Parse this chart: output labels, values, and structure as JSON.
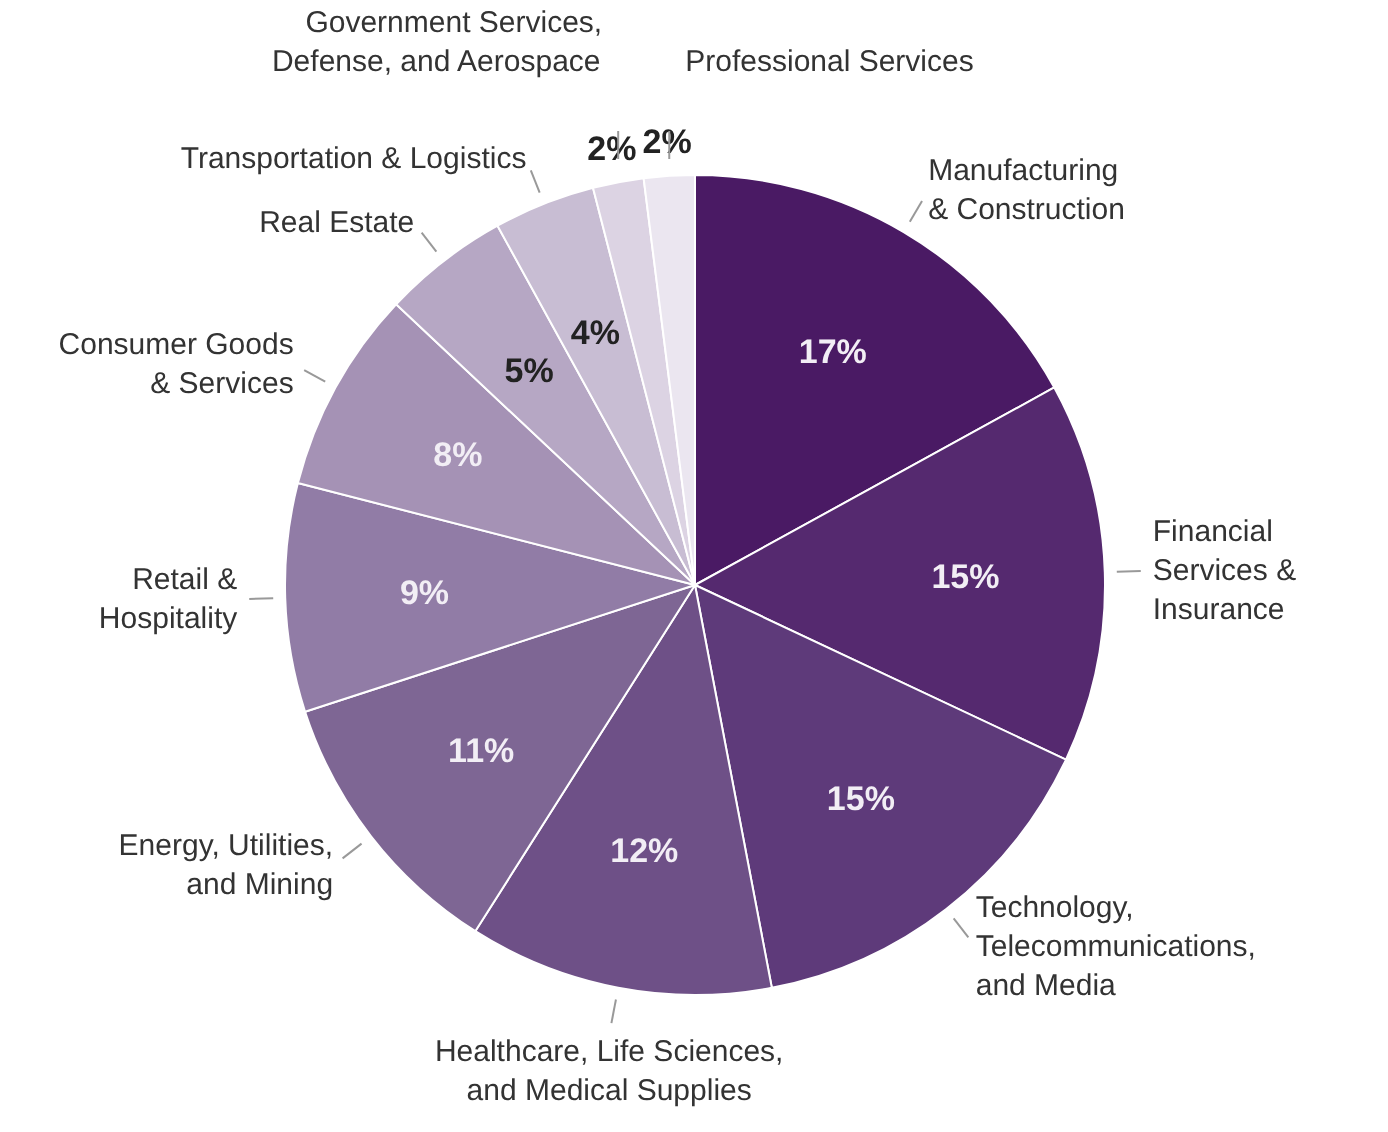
{
  "chart_data": {
    "type": "pie",
    "categories": [
      "Manufacturing\n& Construction",
      "Financial\nServices &\nInsurance",
      "Technology,\nTelecommunications,\nand Media",
      "Healthcare, Life Sciences,\nand Medical Supplies",
      "Energy, Utilities,\nand Mining",
      "Retail &\nHospitality",
      "Consumer Goods\n& Services",
      "Real Estate",
      "Transportation & Logistics",
      "Government Services,\nDefense, and Aerospace",
      "Professional Services"
    ],
    "values": [
      17,
      15,
      15,
      12,
      11,
      9,
      8,
      5,
      4,
      2,
      2
    ],
    "value_labels": [
      "17%",
      "15%",
      "15%",
      "12%",
      "11%",
      "9%",
      "8%",
      "5%",
      "4%",
      "2%",
      "2%"
    ],
    "colors": [
      "#4a1a64",
      "#55296f",
      "#5e3a7a",
      "#6e5087",
      "#7e6694",
      "#917ca6",
      "#a592b5",
      "#b6a7c4",
      "#c8bdd3",
      "#dcd3e3",
      "#ebe6f0"
    ]
  }
}
